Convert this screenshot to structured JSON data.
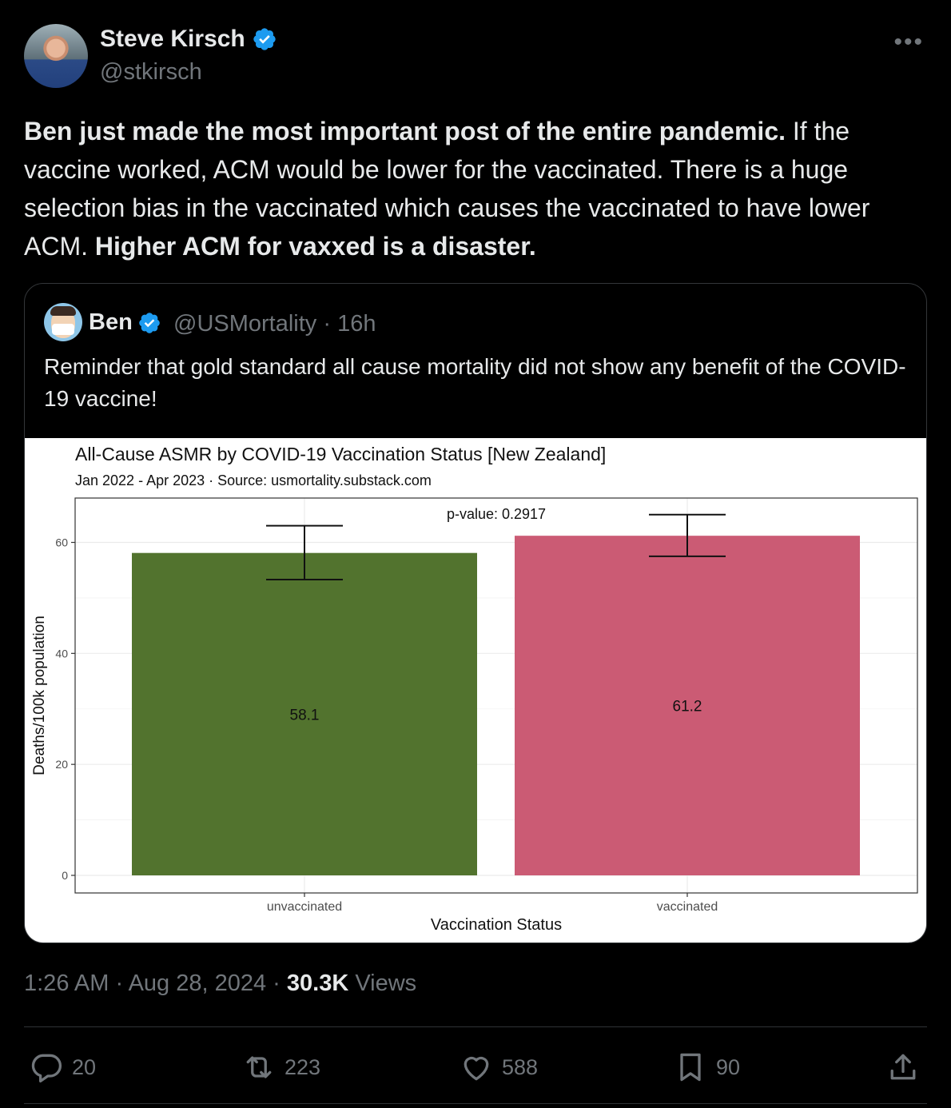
{
  "author": {
    "name": "Steve Kirsch",
    "handle": "@stkirsch"
  },
  "tweet": {
    "bold_intro": "Ben just made the most important post of the entire pandemic.",
    "middle": " If the vaccine worked, ACM would be lower for the vaccinated. There is a huge selection bias in the vaccinated which causes the vaccinated to have lower ACM. ",
    "bold_outro": "Higher ACM for vaxxed is a disaster."
  },
  "quote": {
    "name": "Ben",
    "handle_time": "@USMortality · 16h",
    "text": "Reminder that gold standard all cause mortality did not show any benefit of the COVID-19 vaccine!"
  },
  "chart_data": {
    "type": "bar",
    "title": "All-Cause ASMR by COVID-19 Vaccination Status [New Zealand]",
    "subtitle": "Jan 2022 - Apr 2023 · Source: usmortality.substack.com",
    "xlabel": "Vaccination Status",
    "ylabel": "Deaths/100k population",
    "categories": [
      "unvaccinated",
      "vaccinated"
    ],
    "values": [
      58.1,
      61.2
    ],
    "value_labels": [
      "58.1",
      "61.2"
    ],
    "error_low": [
      53.3,
      57.5
    ],
    "error_high": [
      63.0,
      65.0
    ],
    "colors": [
      "#52732e",
      "#cb5b74"
    ],
    "annotation": "p-value: 0.2917",
    "yticks": [
      0,
      20,
      40,
      60
    ],
    "ylim": [
      0,
      68
    ],
    "grid": true,
    "legend": "none"
  },
  "meta": {
    "time_date": "1:26 AM · Aug 28, 2024 · ",
    "views_count": "30.3K",
    "views_label": " Views"
  },
  "actions": {
    "replies": "20",
    "reposts": "223",
    "likes": "588",
    "bookmarks": "90"
  },
  "colors": {
    "background": "#000000",
    "text": "#e7e9ea",
    "muted": "#71767b",
    "verified": "#1d9bf0"
  }
}
